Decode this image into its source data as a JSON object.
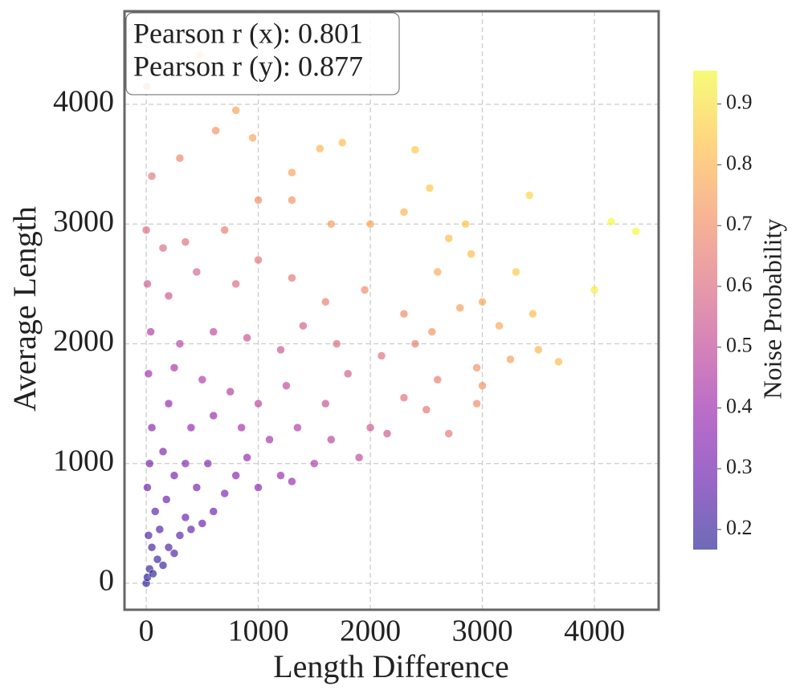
{
  "chart_data": {
    "type": "scatter",
    "xlabel": "Length Difference",
    "ylabel": "Average Length",
    "annotations": [
      "Pearson r (x): 0.801",
      "Pearson r (y): 0.877"
    ],
    "colorbar_label": "Noise Probability",
    "colormap": "plasma",
    "xlim": [
      -194,
      4573
    ],
    "ylim": [
      -221,
      4777
    ],
    "xticks": [
      0,
      1000,
      2000,
      3000,
      4000
    ],
    "yticks": [
      0,
      1000,
      2000,
      3000,
      4000
    ],
    "clim": [
      0.167,
      0.955
    ],
    "cticks": [
      0.2,
      0.3,
      0.4,
      0.5,
      0.6,
      0.7,
      0.8,
      0.9
    ],
    "grid": true,
    "x": [
      0,
      10,
      30,
      60,
      100,
      150,
      200,
      50,
      20,
      120,
      250,
      300,
      80,
      180,
      350,
      400,
      500,
      10,
      250,
      450,
      600,
      700,
      30,
      150,
      350,
      550,
      800,
      900,
      1000,
      1200,
      1300,
      50,
      200,
      400,
      600,
      850,
      1100,
      1350,
      1500,
      1650,
      1900,
      20,
      250,
      500,
      750,
      1000,
      1250,
      1600,
      2000,
      2150,
      1800,
      40,
      300,
      600,
      900,
      1200,
      1400,
      1700,
      2100,
      2300,
      2500,
      2700,
      2950,
      3000,
      2600,
      2400,
      10,
      200,
      450,
      800,
      1000,
      1300,
      1600,
      1950,
      2300,
      2550,
      2800,
      3000,
      3250,
      3500,
      3680,
      3450,
      2950,
      0,
      150,
      350,
      700,
      1000,
      1300,
      1650,
      2000,
      2300,
      2600,
      2900,
      3150,
      2700,
      2850,
      3420,
      4000,
      4150,
      4370,
      50,
      300,
      620,
      800,
      950,
      1300,
      1550,
      1750,
      2400,
      2530,
      3300,
      480,
      5
    ],
    "y": [
      0,
      50,
      120,
      80,
      200,
      150,
      300,
      300,
      400,
      450,
      250,
      400,
      600,
      700,
      550,
      450,
      500,
      800,
      900,
      800,
      600,
      750,
      1000,
      1100,
      1000,
      1000,
      900,
      1050,
      800,
      900,
      850,
      1300,
      1500,
      1300,
      1400,
      1300,
      1200,
      1300,
      1000,
      1200,
      1050,
      1750,
      1800,
      1700,
      1600,
      1500,
      1650,
      1500,
      1300,
      1250,
      1750,
      2100,
      2000,
      2100,
      2050,
      1950,
      2150,
      2000,
      1900,
      1550,
      1450,
      1250,
      1500,
      1650,
      1700,
      2000,
      2500,
      2400,
      2600,
      2500,
      2700,
      2550,
      2350,
      2450,
      2250,
      2100,
      2300,
      2350,
      1870,
      1950,
      1850,
      2250,
      1800,
      2950,
      2800,
      2850,
      2950,
      3200,
      3200,
      3000,
      3000,
      3100,
      2600,
      2750,
      2150,
      2880,
      3000,
      3240,
      2450,
      3020,
      2940,
      3400,
      3550,
      3780,
      3950,
      3720,
      3430,
      3630,
      3680,
      3620,
      3300,
      2600,
      4410,
      4150
    ],
    "color_values": [
      0.17,
      0.18,
      0.19,
      0.18,
      0.2,
      0.2,
      0.23,
      0.21,
      0.23,
      0.24,
      0.23,
      0.25,
      0.26,
      0.28,
      0.28,
      0.27,
      0.28,
      0.28,
      0.31,
      0.31,
      0.3,
      0.33,
      0.31,
      0.33,
      0.34,
      0.35,
      0.35,
      0.38,
      0.36,
      0.4,
      0.4,
      0.35,
      0.38,
      0.38,
      0.4,
      0.42,
      0.43,
      0.45,
      0.45,
      0.48,
      0.5,
      0.42,
      0.44,
      0.45,
      0.46,
      0.48,
      0.5,
      0.52,
      0.54,
      0.55,
      0.56,
      0.46,
      0.48,
      0.5,
      0.53,
      0.54,
      0.57,
      0.6,
      0.62,
      0.62,
      0.63,
      0.64,
      0.7,
      0.72,
      0.66,
      0.66,
      0.55,
      0.55,
      0.58,
      0.6,
      0.63,
      0.64,
      0.66,
      0.7,
      0.7,
      0.72,
      0.75,
      0.77,
      0.75,
      0.8,
      0.82,
      0.82,
      0.72,
      0.6,
      0.6,
      0.62,
      0.66,
      0.7,
      0.72,
      0.74,
      0.76,
      0.8,
      0.78,
      0.82,
      0.78,
      0.82,
      0.84,
      0.88,
      0.93,
      0.95,
      0.95,
      0.64,
      0.68,
      0.72,
      0.76,
      0.76,
      0.76,
      0.8,
      0.82,
      0.85,
      0.85,
      0.85,
      0.8,
      0.72
    ]
  }
}
